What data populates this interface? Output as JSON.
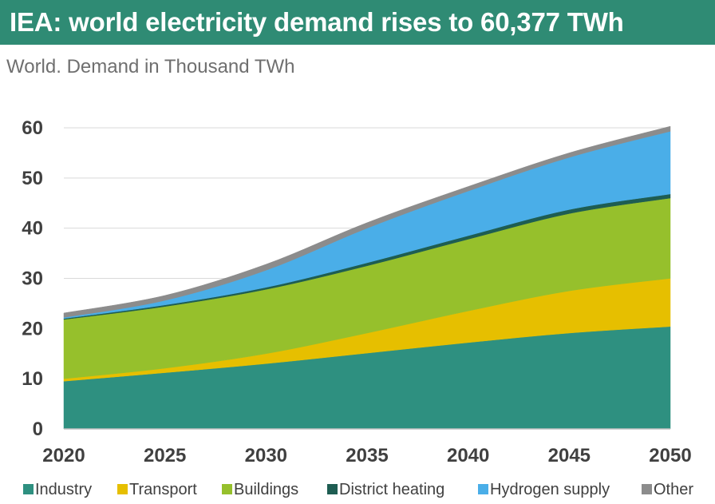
{
  "title": "IEA: world electricity demand rises to 60,377 TWh",
  "subtitle": "World. Demand in Thousand TWh",
  "colors": {
    "header_bg": "#2f8b74",
    "Industry": "#2e9080",
    "Transport": "#e6bf00",
    "Buildings": "#96c02c",
    "District heating": "#1e5d52",
    "Hydrogen supply": "#4aaee8",
    "Other": "#8c8c8c"
  },
  "chart_data": {
    "type": "area",
    "stacked": true,
    "x": [
      2020,
      2025,
      2030,
      2035,
      2040,
      2045,
      2050
    ],
    "xlim": [
      2020,
      2050
    ],
    "ylim": [
      0,
      60
    ],
    "yticks": [
      0,
      10,
      20,
      30,
      40,
      50,
      60
    ],
    "grid": "horizontal",
    "legend_position": "bottom",
    "series": [
      {
        "name": "Industry",
        "values": [
          9.5,
          11.2,
          13.0,
          15.1,
          17.2,
          19.1,
          20.4
        ]
      },
      {
        "name": "Transport",
        "values": [
          0.5,
          0.9,
          2.0,
          4.0,
          6.3,
          8.4,
          9.6
        ]
      },
      {
        "name": "Buildings",
        "values": [
          11.8,
          12.3,
          12.8,
          13.4,
          14.3,
          15.4,
          16.0
        ]
      },
      {
        "name": "District heating",
        "values": [
          0.2,
          0.3,
          0.4,
          0.6,
          0.7,
          0.8,
          0.8
        ]
      },
      {
        "name": "Hydrogen supply",
        "values": [
          0.2,
          0.9,
          3.4,
          6.9,
          8.9,
          10.4,
          12.5
        ]
      },
      {
        "name": "Other",
        "values": [
          0.9,
          1.0,
          1.2,
          1.1,
          0.9,
          0.9,
          1.0
        ]
      }
    ]
  }
}
